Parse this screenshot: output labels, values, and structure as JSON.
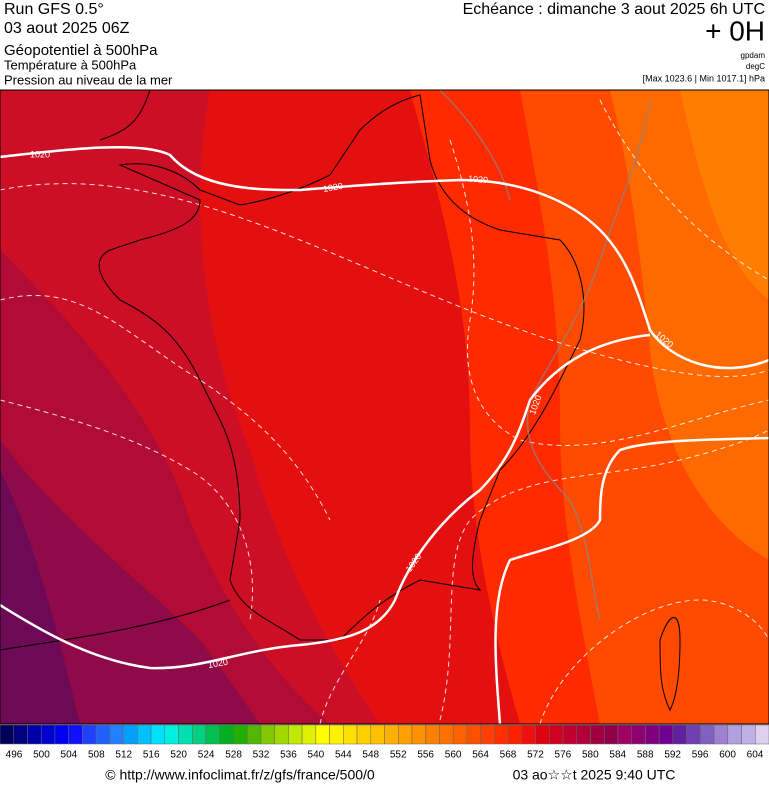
{
  "header": {
    "run": "Run GFS 0.5°",
    "run_date": "03 aout 2025 06Z",
    "field_main": "Géopotentiel à 500hPa",
    "field_2": "Température à 500hPa",
    "field_3": "Pression au niveau de la mer",
    "valid": "Echéance : dimanche 3 aout 2025 6h UTC",
    "lead": "+ 0H",
    "unit_1": "gpdam",
    "unit_2": "degC",
    "pressure_range": "[Max 1023.6 | Min 1017.1] hPa"
  },
  "map": {
    "isobar_labels": [
      1020,
      1020,
      1020,
      1020,
      1020,
      1020,
      1020
    ]
  },
  "colorbar": {
    "labels": [
      496,
      500,
      504,
      508,
      512,
      516,
      520,
      524,
      528,
      532,
      536,
      540,
      544,
      548,
      552,
      556,
      560,
      564,
      568,
      572,
      576,
      580,
      584,
      588,
      592,
      596,
      600,
      604
    ],
    "colors": [
      "#00005a",
      "#000080",
      "#0000a8",
      "#0000d0",
      "#0000f0",
      "#1010ff",
      "#2040ff",
      "#2060ff",
      "#2080ff",
      "#00a0ff",
      "#00c0ff",
      "#00e0ff",
      "#00f0e0",
      "#00e0b0",
      "#00d080",
      "#00c050",
      "#00b020",
      "#20b000",
      "#50b800",
      "#80c800",
      "#a0d800",
      "#c0e800",
      "#e0f000",
      "#ffff00",
      "#fff000",
      "#ffe000",
      "#ffd000",
      "#ffc000",
      "#ffb000",
      "#ffa000",
      "#ff9000",
      "#ff8000",
      "#ff7000",
      "#ff6000",
      "#ff5000",
      "#ff4000",
      "#ff3000",
      "#ff2000",
      "#f01010",
      "#e00010",
      "#d00020",
      "#c00030",
      "#b00038",
      "#a00040",
      "#900048",
      "#a00060",
      "#900070",
      "#800080",
      "#700090",
      "#6020a0",
      "#7040b0",
      "#8060c0",
      "#a080d0",
      "#b0a0e0",
      "#c0b0e8",
      "#e0d0f0"
    ]
  },
  "footer": {
    "url": "© http://www.infoclimat.fr/z/gfs/france/500/0",
    "stamp": "03 ao☆☆t 2025  9:40 UTC"
  }
}
